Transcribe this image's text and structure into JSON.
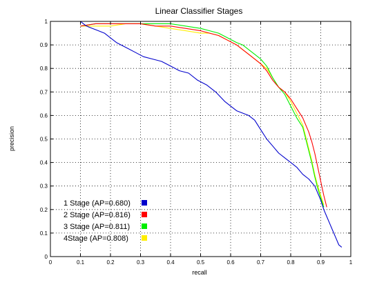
{
  "chart_data": {
    "type": "line",
    "title": "Linear Classifier Stages",
    "xlabel": "recall",
    "ylabel": "precision",
    "xlim": [
      0,
      1
    ],
    "ylim": [
      0,
      1
    ],
    "grid": true,
    "legend_placement": "bottom-left",
    "xticks": [
      "0",
      "0.1",
      "0.2",
      "0.3",
      "0.4",
      "0.5",
      "0.6",
      "0.7",
      "0.8",
      "0.9",
      "1"
    ],
    "yticks": [
      "0",
      "0.1",
      "0.2",
      "0.3",
      "0.4",
      "0.5",
      "0.6",
      "0.7",
      "0.8",
      "0.9",
      "1"
    ],
    "series": [
      {
        "name": "1 Stage (AP=0.680)",
        "color": "#0000cc",
        "x": [
          0.1,
          0.11,
          0.12,
          0.14,
          0.16,
          0.18,
          0.2,
          0.22,
          0.25,
          0.28,
          0.31,
          0.34,
          0.37,
          0.4,
          0.43,
          0.46,
          0.49,
          0.52,
          0.55,
          0.58,
          0.6,
          0.62,
          0.64,
          0.66,
          0.68,
          0.7,
          0.72,
          0.74,
          0.76,
          0.78,
          0.8,
          0.82,
          0.84,
          0.86,
          0.88,
          0.89,
          0.9,
          0.91,
          0.92,
          0.93,
          0.94,
          0.95,
          0.96,
          0.97
        ],
        "y": [
          1.0,
          0.99,
          0.98,
          0.97,
          0.96,
          0.95,
          0.93,
          0.91,
          0.89,
          0.87,
          0.85,
          0.84,
          0.83,
          0.81,
          0.79,
          0.78,
          0.75,
          0.73,
          0.7,
          0.66,
          0.64,
          0.62,
          0.61,
          0.6,
          0.58,
          0.54,
          0.5,
          0.47,
          0.44,
          0.42,
          0.4,
          0.38,
          0.35,
          0.33,
          0.3,
          0.27,
          0.24,
          0.2,
          0.17,
          0.14,
          0.11,
          0.08,
          0.05,
          0.04
        ]
      },
      {
        "name": "2 Stage (AP=0.816)",
        "color": "#ff0000",
        "x": [
          0.1,
          0.15,
          0.2,
          0.25,
          0.3,
          0.35,
          0.4,
          0.45,
          0.5,
          0.53,
          0.56,
          0.59,
          0.62,
          0.64,
          0.66,
          0.68,
          0.7,
          0.72,
          0.74,
          0.76,
          0.78,
          0.8,
          0.82,
          0.84,
          0.86,
          0.87,
          0.88,
          0.89,
          0.9,
          0.91,
          0.92
        ],
        "y": [
          0.98,
          0.99,
          0.99,
          0.99,
          0.99,
          0.98,
          0.98,
          0.97,
          0.96,
          0.95,
          0.94,
          0.92,
          0.9,
          0.88,
          0.86,
          0.84,
          0.82,
          0.79,
          0.75,
          0.72,
          0.7,
          0.67,
          0.63,
          0.59,
          0.53,
          0.49,
          0.44,
          0.38,
          0.32,
          0.26,
          0.21
        ]
      },
      {
        "name": "3 Stage (AP=0.811)",
        "color": "#00ee00",
        "x": [
          0.1,
          0.15,
          0.2,
          0.25,
          0.3,
          0.35,
          0.4,
          0.45,
          0.5,
          0.53,
          0.56,
          0.59,
          0.62,
          0.64,
          0.66,
          0.68,
          0.7,
          0.72,
          0.74,
          0.76,
          0.78,
          0.8,
          0.82,
          0.84,
          0.85,
          0.86,
          0.87,
          0.88,
          0.89,
          0.9,
          0.91
        ],
        "y": [
          0.98,
          0.99,
          0.99,
          0.99,
          0.99,
          0.99,
          0.99,
          0.98,
          0.97,
          0.96,
          0.95,
          0.93,
          0.91,
          0.9,
          0.88,
          0.86,
          0.84,
          0.81,
          0.76,
          0.72,
          0.69,
          0.64,
          0.59,
          0.55,
          0.5,
          0.45,
          0.4,
          0.34,
          0.29,
          0.25,
          0.21
        ]
      },
      {
        "name": "4Stage (AP=0.808)",
        "color": "#ffee00",
        "x": [
          0.1,
          0.15,
          0.2,
          0.25,
          0.3,
          0.35,
          0.4,
          0.45,
          0.5,
          0.53,
          0.56,
          0.59,
          0.62,
          0.64,
          0.66,
          0.68,
          0.7,
          0.72,
          0.74,
          0.76,
          0.78,
          0.8,
          0.82,
          0.84,
          0.85,
          0.86,
          0.87,
          0.88,
          0.89,
          0.9,
          0.91
        ],
        "y": [
          0.98,
          0.98,
          0.98,
          0.99,
          0.99,
          0.98,
          0.97,
          0.96,
          0.95,
          0.95,
          0.94,
          0.92,
          0.9,
          0.88,
          0.86,
          0.84,
          0.82,
          0.8,
          0.76,
          0.72,
          0.7,
          0.66,
          0.61,
          0.56,
          0.51,
          0.46,
          0.41,
          0.35,
          0.3,
          0.26,
          0.22
        ]
      }
    ]
  }
}
